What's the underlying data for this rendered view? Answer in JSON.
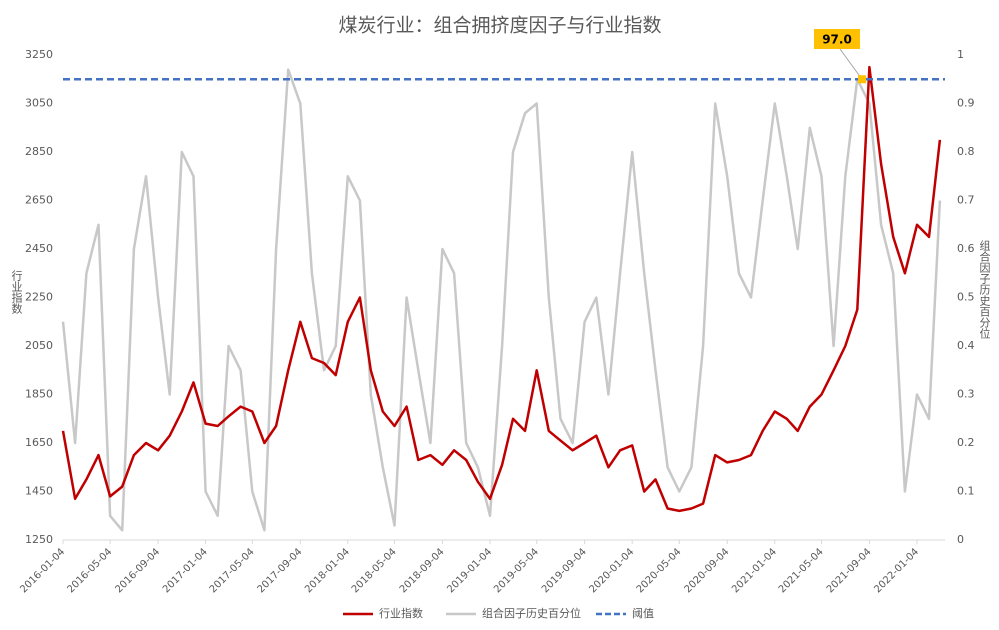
{
  "chart_data": {
    "type": "line",
    "title": "煤炭行业：组合拥挤度因子与行业指数",
    "y_label": "行业指数",
    "y2_label": "组合因子历史百分位",
    "x": [
      "2016-01-04",
      "2016-02-04",
      "2016-03-04",
      "2016-04-04",
      "2016-05-04",
      "2016-06-04",
      "2016-07-04",
      "2016-08-04",
      "2016-09-04",
      "2016-10-04",
      "2016-11-04",
      "2016-12-04",
      "2017-01-04",
      "2017-02-04",
      "2017-03-04",
      "2017-04-04",
      "2017-05-04",
      "2017-06-04",
      "2017-07-04",
      "2017-08-04",
      "2017-09-04",
      "2017-10-04",
      "2017-11-04",
      "2017-12-04",
      "2018-01-04",
      "2018-02-04",
      "2018-03-04",
      "2018-04-04",
      "2018-05-04",
      "2018-06-04",
      "2018-07-04",
      "2018-08-04",
      "2018-09-04",
      "2018-10-04",
      "2018-11-04",
      "2018-12-04",
      "2019-01-04",
      "2019-02-04",
      "2019-03-04",
      "2019-04-04",
      "2019-05-04",
      "2019-06-04",
      "2019-07-04",
      "2019-08-04",
      "2019-09-04",
      "2019-10-04",
      "2019-11-04",
      "2019-12-04",
      "2020-01-04",
      "2020-02-04",
      "2020-03-04",
      "2020-04-04",
      "2020-05-04",
      "2020-06-04",
      "2020-07-04",
      "2020-08-04",
      "2020-09-04",
      "2020-10-04",
      "2020-11-04",
      "2020-12-04",
      "2021-01-04",
      "2021-02-04",
      "2021-03-04",
      "2021-04-04",
      "2021-05-04",
      "2021-06-04",
      "2021-07-04",
      "2021-08-04",
      "2021-09-04",
      "2021-10-04",
      "2021-11-04",
      "2021-12-04",
      "2022-01-04",
      "2022-02-04",
      "2022-03-04"
    ],
    "series": [
      {
        "name": "行业指数",
        "color": "#c00000",
        "values": [
          1700,
          1420,
          1500,
          1600,
          1430,
          1470,
          1600,
          1650,
          1620,
          1680,
          1780,
          1900,
          1730,
          1720,
          1760,
          1800,
          1780,
          1650,
          1720,
          1950,
          2150,
          2000,
          1980,
          1930,
          2150,
          2250,
          1950,
          1780,
          1720,
          1800,
          1580,
          1600,
          1560,
          1620,
          1580,
          1490,
          1420,
          1560,
          1750,
          1700,
          1950,
          1700,
          1660,
          1620,
          1650,
          1680,
          1550,
          1620,
          1640,
          1450,
          1500,
          1380,
          1370,
          1380,
          1400,
          1600,
          1570,
          1580,
          1600,
          1700,
          1780,
          1750,
          1700,
          1800,
          1850,
          1950,
          2050,
          2200,
          3200,
          2800,
          2500,
          2350,
          2550,
          2500,
          2900
        ]
      },
      {
        "name": "组合因子历史百分位",
        "color": "#c8c8c8",
        "axis": "y2",
        "values": [
          0.45,
          0.2,
          0.55,
          0.65,
          0.05,
          0.02,
          0.6,
          0.75,
          0.5,
          0.3,
          0.8,
          0.75,
          0.1,
          0.05,
          0.4,
          0.35,
          0.1,
          0.02,
          0.6,
          0.97,
          0.9,
          0.55,
          0.35,
          0.4,
          0.75,
          0.7,
          0.3,
          0.15,
          0.03,
          0.5,
          0.35,
          0.2,
          0.6,
          0.55,
          0.2,
          0.15,
          0.05,
          0.4,
          0.8,
          0.88,
          0.9,
          0.5,
          0.25,
          0.2,
          0.45,
          0.5,
          0.3,
          0.55,
          0.8,
          0.55,
          0.35,
          0.15,
          0.1,
          0.15,
          0.4,
          0.9,
          0.75,
          0.55,
          0.5,
          0.7,
          0.9,
          0.75,
          0.6,
          0.85,
          0.75,
          0.4,
          0.75,
          0.95,
          0.9,
          0.65,
          0.55,
          0.1,
          0.3,
          0.25,
          0.7
        ]
      }
    ],
    "threshold": {
      "name": "阈值",
      "value": 0.95,
      "color": "#4472c4",
      "axis": "y2"
    },
    "annotation": {
      "text": "97.0",
      "x": "2021-08-16",
      "y": 0.95,
      "color": "#ffc000"
    },
    "xlim": [
      "2016-01-04",
      "2022-03-17"
    ],
    "xticks": [
      "2016-01-04",
      "2016-05-04",
      "2016-09-04",
      "2017-01-04",
      "2017-05-04",
      "2017-09-04",
      "2018-01-04",
      "2018-05-04",
      "2018-09-04",
      "2019-01-04",
      "2019-05-04",
      "2019-09-04",
      "2020-01-04",
      "2020-05-04",
      "2020-09-04",
      "2021-01-04",
      "2021-05-04",
      "2021-09-04",
      "2022-01-04"
    ],
    "ylim": [
      1250,
      3250
    ],
    "yticks": [
      1250,
      1450,
      1650,
      1850,
      2050,
      2250,
      2450,
      2650,
      2850,
      3050,
      3250
    ],
    "y2lim": [
      0,
      1
    ],
    "y2ticks": [
      0,
      0.1,
      0.2,
      0.3,
      0.4,
      0.5,
      0.6,
      0.7,
      0.8,
      0.9,
      1
    ],
    "legend": "bottom"
  }
}
